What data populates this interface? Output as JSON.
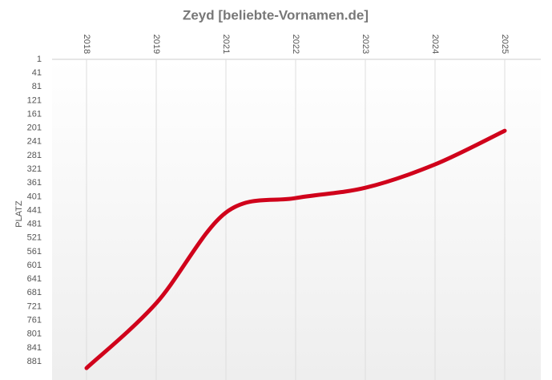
{
  "chart_data": {
    "type": "line",
    "title": "Zeyd [beliebte-Vornamen.de]",
    "y_label": "PLATZ",
    "categories": [
      "2018",
      "2019",
      "2021",
      "2022",
      "2023",
      "2024",
      "2025"
    ],
    "series": [
      {
        "name": "Zeyd",
        "color": "#d0021b",
        "values": [
          900,
          711,
          447,
          405,
          375,
          307,
          209
        ]
      }
    ],
    "ylim": [
      1,
      902
    ],
    "y_inverted": true,
    "yticks": [
      1,
      41,
      81,
      121,
      161,
      201,
      241,
      281,
      321,
      361,
      401,
      441,
      481,
      521,
      561,
      601,
      641,
      681,
      721,
      761,
      801,
      841,
      881
    ],
    "grid": true
  }
}
